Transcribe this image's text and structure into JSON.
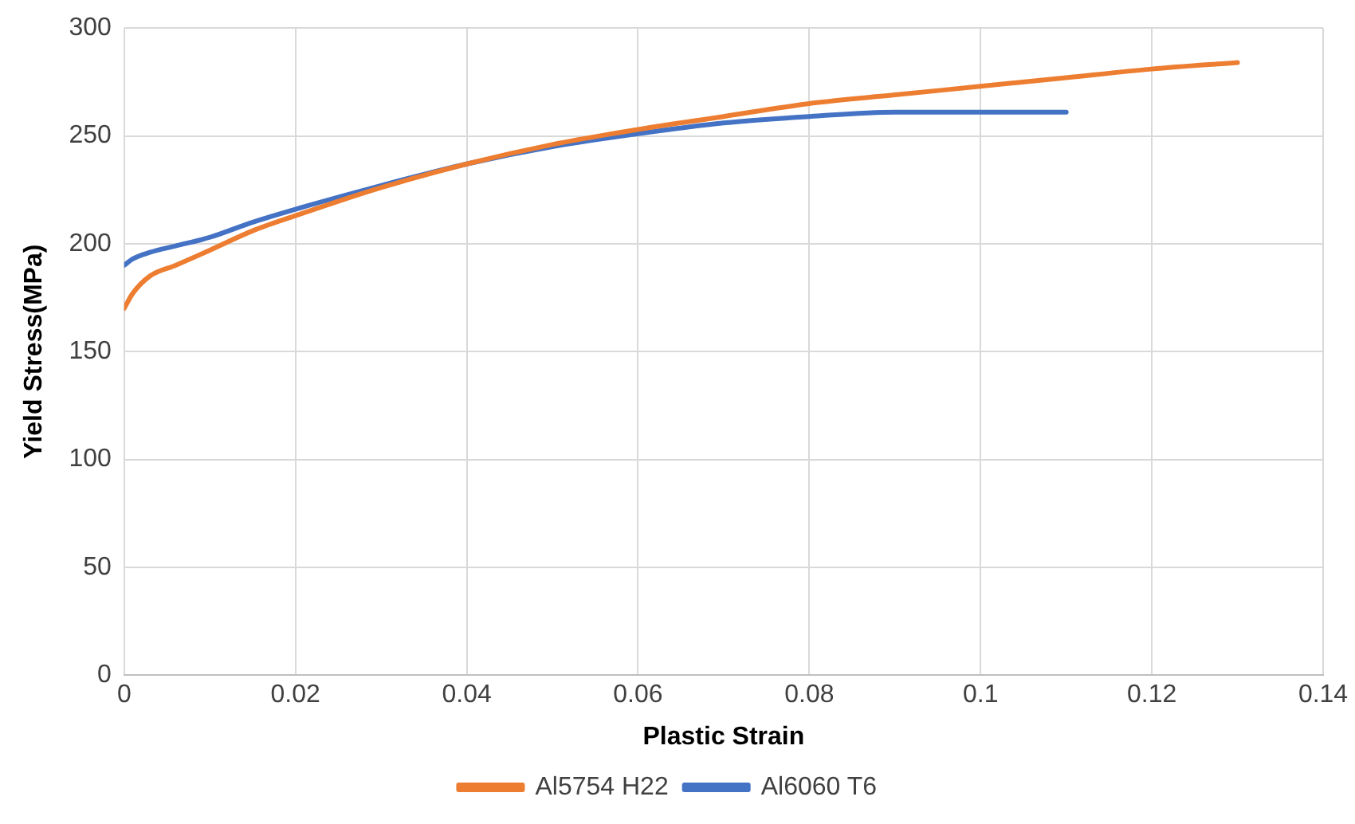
{
  "chart_data": {
    "type": "line",
    "xlabel": "Plastic Strain",
    "ylabel": "Yield Stress(MPa)",
    "xlim": [
      0,
      0.14
    ],
    "xticks": [
      0,
      0.02,
      0.04,
      0.06,
      0.08,
      0.1,
      0.12,
      0.14
    ],
    "ylim": [
      0,
      300
    ],
    "yticks": [
      0,
      50,
      100,
      150,
      200,
      250,
      300
    ],
    "grid": true,
    "legend": "bottom",
    "marker": "none",
    "line_style": "solid",
    "series": [
      {
        "name": "Al5754 H22",
        "color": "#ed7d31",
        "x": [
          0,
          0.001,
          0.003,
          0.006,
          0.01,
          0.015,
          0.02,
          0.03,
          0.04,
          0.05,
          0.06,
          0.07,
          0.08,
          0.09,
          0.1,
          0.11,
          0.12,
          0.13
        ],
        "values": [
          170,
          177,
          185,
          190,
          197,
          206,
          213,
          226,
          237,
          246,
          253,
          259,
          265,
          269,
          273,
          277,
          281,
          284
        ]
      },
      {
        "name": "Al6060 T6",
        "color": "#4472c4",
        "x": [
          0,
          0.001,
          0.003,
          0.006,
          0.01,
          0.015,
          0.02,
          0.03,
          0.04,
          0.05,
          0.06,
          0.07,
          0.08,
          0.09,
          0.1,
          0.11
        ],
        "values": [
          190,
          193,
          196,
          199,
          203,
          210,
          216,
          227,
          237,
          245,
          251,
          256,
          259,
          261,
          261,
          261
        ]
      }
    ]
  }
}
